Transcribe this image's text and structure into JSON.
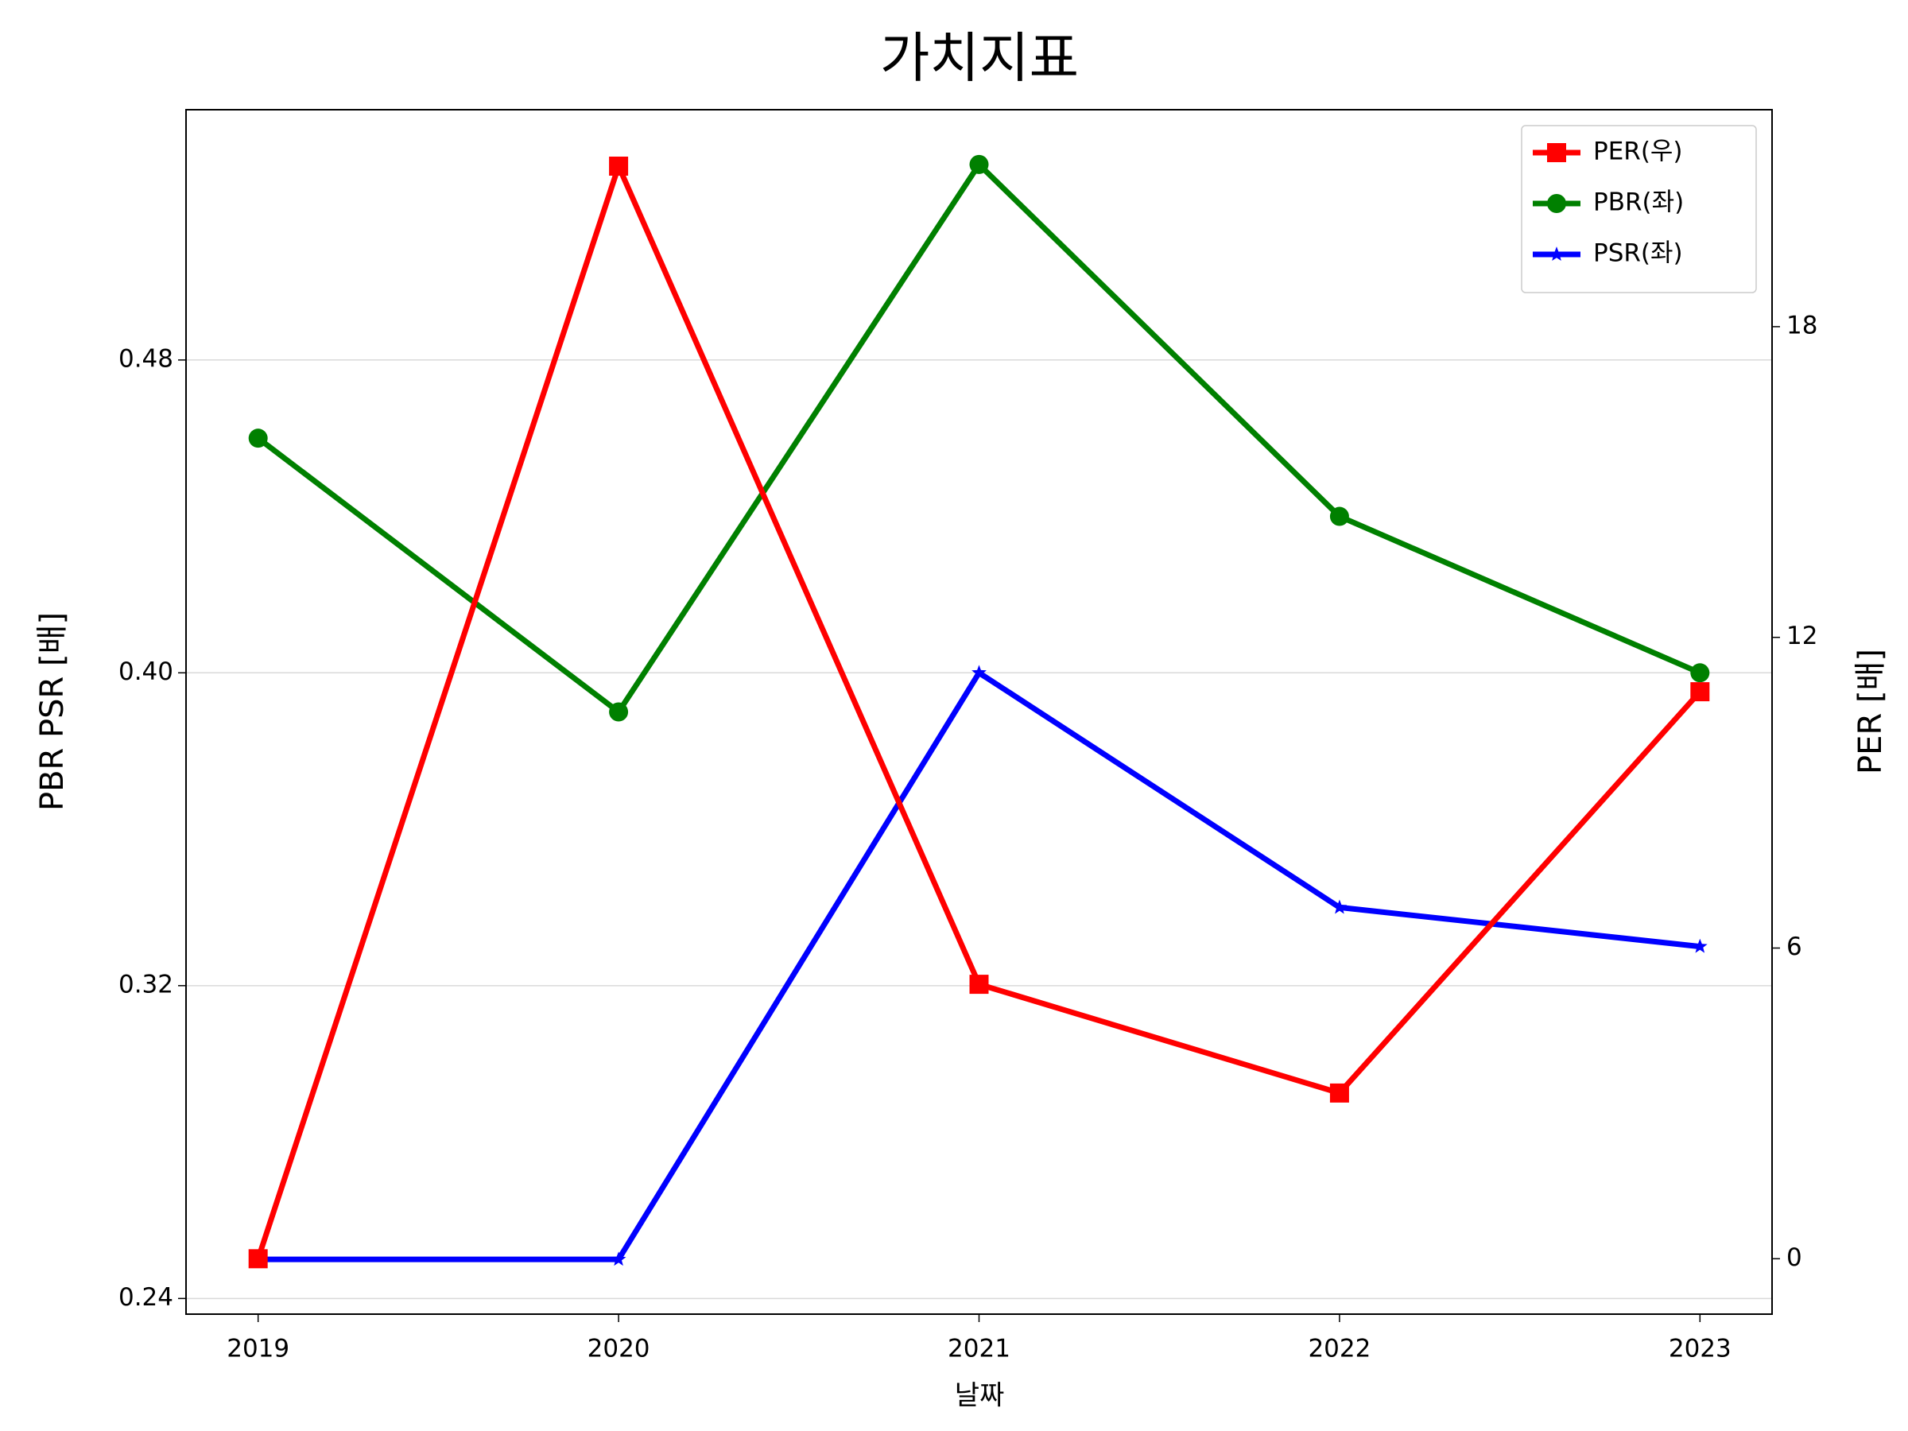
{
  "chart_data": {
    "type": "line",
    "title": "가치지표",
    "xlabel": "날짜",
    "ylabel": "PBR PSR [배]",
    "y2label": "PER [배]",
    "ylabel_color": "#008000",
    "y2label_color": "#ff0000",
    "categories": [
      "2019",
      "2020",
      "2021",
      "2022",
      "2023"
    ],
    "series": [
      {
        "name": "PER(우)",
        "color": "#ff0000",
        "marker": "square",
        "axis": "y2",
        "values": [
          0,
          21.1,
          5.3,
          3.2,
          10.95
        ]
      },
      {
        "name": "PBR(좌)",
        "color": "#008000",
        "marker": "circle",
        "values": [
          0.46,
          0.39,
          0.53,
          0.44,
          0.4
        ]
      },
      {
        "name": "PSR(좌)",
        "color": "#0000ff",
        "marker": "star",
        "values": [
          0.25,
          0.25,
          0.4,
          0.34,
          0.33
        ]
      }
    ],
    "ylim": [
      0.236,
      0.544
    ],
    "yticks": [
      {
        "value": 0.24,
        "label": "0.24"
      },
      {
        "value": 0.32,
        "label": "0.32"
      },
      {
        "value": 0.4,
        "label": "0.40"
      },
      {
        "value": 0.48,
        "label": "0.48"
      }
    ],
    "y2lim": [
      -1.07,
      22.19
    ],
    "y2ticks": [
      0,
      6,
      12,
      18
    ],
    "grid": true,
    "legend": "upper right"
  }
}
